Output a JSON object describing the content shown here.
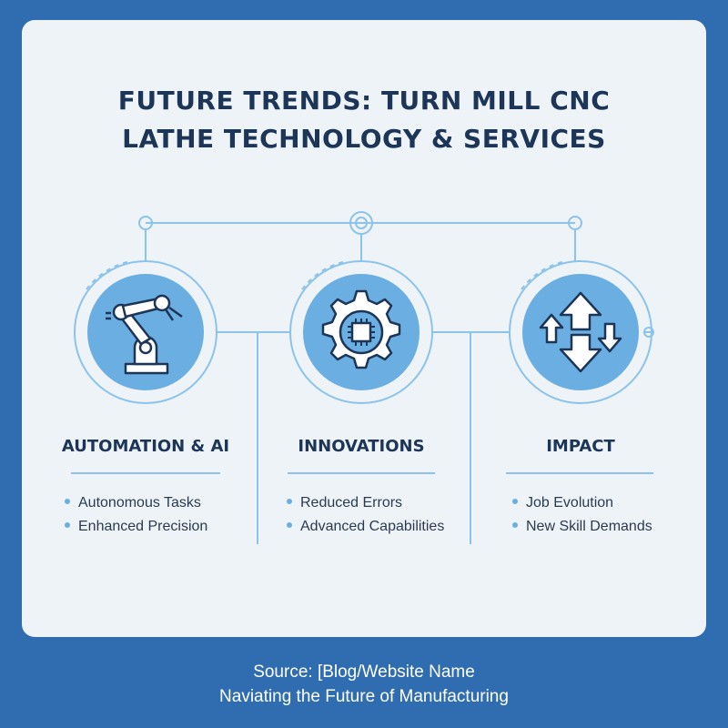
{
  "header": {
    "title_lines": [
      "FUTURE TRENDS: TURN MILL CNC",
      "LATHE TECHNOLOGY & SERVICES"
    ]
  },
  "columns": [
    {
      "heading": "AUTOMATION & AI",
      "bullets": [
        "Autonomous Tasks",
        "Enhanced Precision"
      ]
    },
    {
      "heading": "INNOVATIONS",
      "bullets": [
        "Reduced Errors",
        "Advanced Capabilities"
      ]
    },
    {
      "heading": "IMPACT",
      "bullets": [
        "Job Evolution",
        "New Skill Demands"
      ]
    }
  ],
  "footer": {
    "lines": [
      "Source: [Blog/Website Name",
      "Naviating the Future of Manufacturing"
    ]
  }
}
